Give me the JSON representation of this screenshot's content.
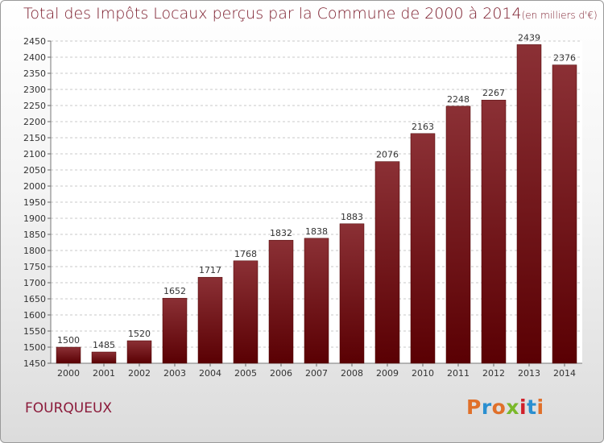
{
  "header": {
    "title": "Total des Impôts Locaux perçus par la Commune de 2000 à 2014",
    "unit": "(en milliers d'€)"
  },
  "footer": {
    "commune": "FOURQUEUX",
    "logo": "Proxiti"
  },
  "colors": {
    "title": "#7a1a2a",
    "bar_light": "#8b3035",
    "bar_dark": "#5a0003",
    "commune": "#8b1a3a",
    "logo_letters": [
      "#e0702a",
      "#2a8fd0",
      "#e0702a",
      "#7ab82a",
      "#d0202a",
      "#2a8fd0",
      "#e0702a"
    ]
  },
  "chart_data": {
    "type": "bar",
    "title": "Total des Impôts Locaux perçus par la Commune de 2000 à 2014",
    "subtitle": "(en milliers d'€)",
    "xlabel": "",
    "ylabel": "",
    "categories": [
      "2000",
      "2001",
      "2002",
      "2003",
      "2004",
      "2005",
      "2006",
      "2007",
      "2008",
      "2009",
      "2010",
      "2011",
      "2012",
      "2013",
      "2014"
    ],
    "values": [
      1500,
      1485,
      1520,
      1652,
      1717,
      1768,
      1832,
      1838,
      1883,
      2076,
      2163,
      2248,
      2267,
      2439,
      2376
    ],
    "ylim": [
      1450,
      2450
    ],
    "ytick_step": 50,
    "grid": "horizontal dashed",
    "legend": "none"
  }
}
